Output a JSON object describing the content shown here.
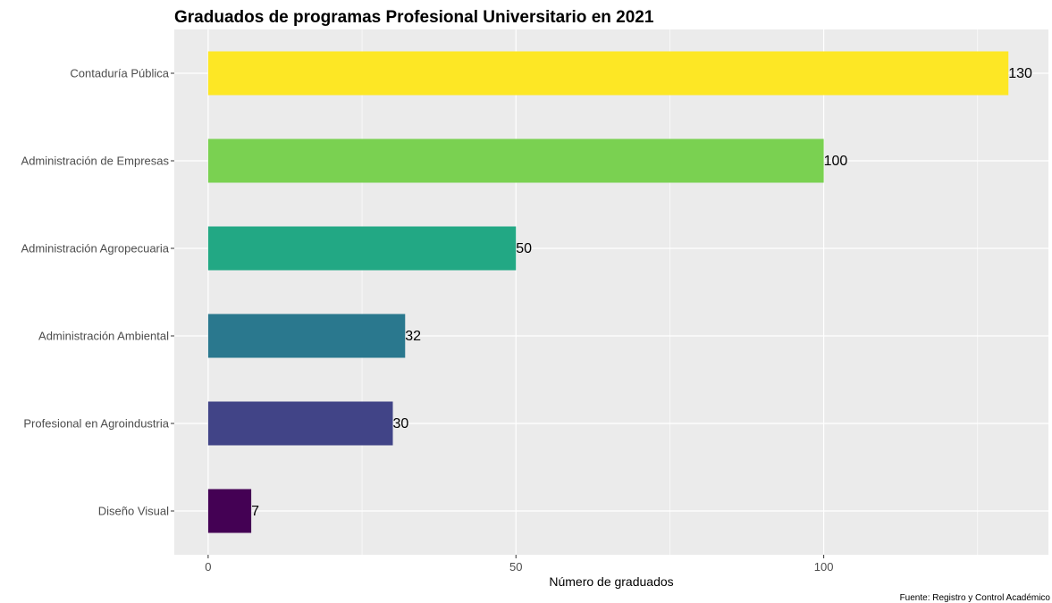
{
  "chart_data": {
    "type": "bar",
    "orientation": "horizontal",
    "title": "Graduados de programas Profesional Universitario en 2021",
    "xlabel": "Número de graduados",
    "ylabel": "",
    "caption": "Fuente: Registro y Control Académico",
    "categories": [
      "Contaduría Pública",
      "Administración de Empresas",
      "Administración Agropecuaria",
      "Administración Ambiental",
      "Profesional en Agroindustria",
      "Diseño Visual"
    ],
    "values": [
      130,
      100,
      50,
      32,
      30,
      7
    ],
    "data_labels": [
      "130",
      "100",
      "50",
      "32",
      "30",
      "7"
    ],
    "colors": [
      "#FDE725",
      "#7AD151",
      "#22A884",
      "#2A788E",
      "#414487",
      "#440154"
    ],
    "xlim": [
      -5.5,
      136.5
    ],
    "xticks": [
      0,
      50,
      100
    ],
    "xtick_labels": [
      "0",
      "50",
      "100"
    ],
    "grid": true,
    "panel_background": "#EBEBEB",
    "legend": "none"
  }
}
